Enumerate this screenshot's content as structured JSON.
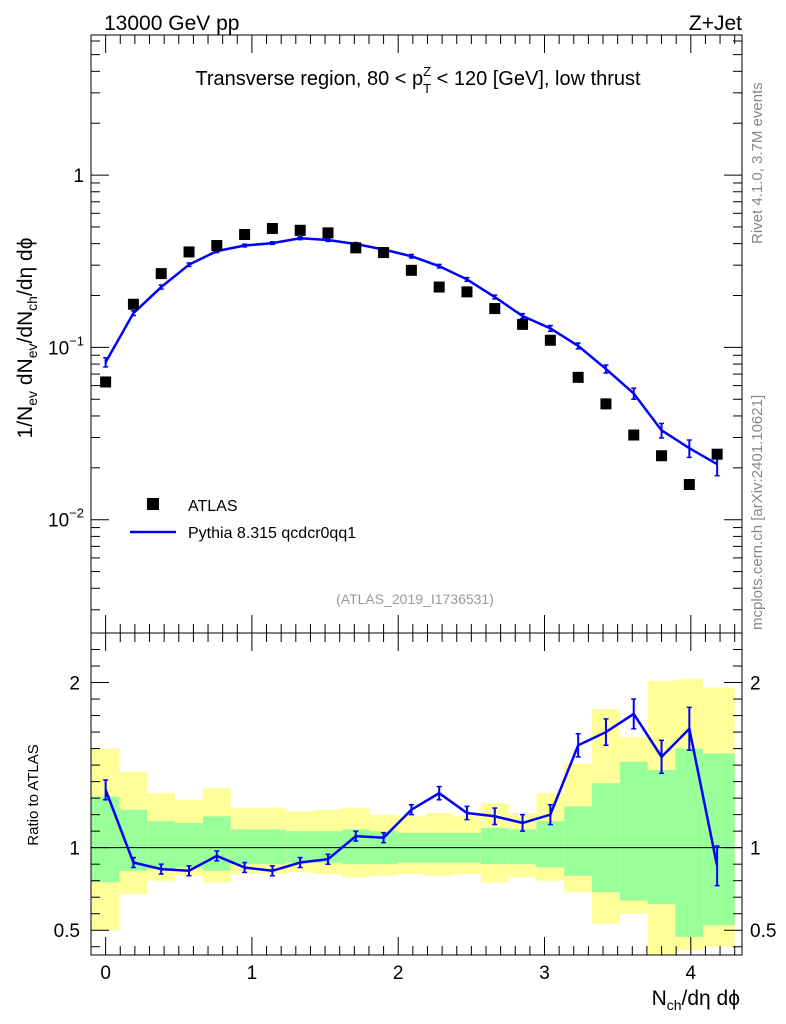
{
  "header": {
    "left": "13000 GeV pp",
    "right": "Z+Jet"
  },
  "side_labels": {
    "rivet": "Rivet 4.1.0,  3.7M events",
    "mcplots": "mcplots.cern.ch [arXiv:2401.10621]"
  },
  "chart_data": [
    {
      "type": "scatter",
      "panel": "main",
      "title": "Transverse region, 80 < pTZ < 120 [GeV], low thrust",
      "title_parts": {
        "before": "Transverse region, 80 < p",
        "sup": "Z",
        "sub": "T",
        "after": " < 120 [GeV], low thrust"
      },
      "ylabel": "1/Nev dNev/dNch/dη dϕ",
      "yscale": "log",
      "ylim": [
        0.0022,
        6.5
      ],
      "xlim": [
        -0.1,
        4.35
      ],
      "y_tick_labels": [
        {
          "value": 1,
          "label": "1"
        },
        {
          "value": 0.1,
          "label": "10",
          "exp": "−1"
        },
        {
          "value": 0.01,
          "label": "10",
          "exp": "−2"
        }
      ],
      "watermark": "(ATLAS_2019_I1736531)",
      "legend": {
        "position": "lower-left",
        "entries": [
          "ATLAS",
          "Pythia 8.315 qcdcr0qq1"
        ]
      },
      "series": [
        {
          "name": "ATLAS",
          "style": "markers",
          "color": "#000000",
          "x": [
            0.0,
            0.19,
            0.38,
            0.57,
            0.76,
            0.95,
            1.14,
            1.33,
            1.52,
            1.71,
            1.9,
            2.09,
            2.28,
            2.47,
            2.66,
            2.85,
            3.04,
            3.23,
            3.42,
            3.61,
            3.8,
            3.99,
            4.18
          ],
          "y": [
            0.063,
            0.178,
            0.268,
            0.358,
            0.39,
            0.452,
            0.49,
            0.478,
            0.462,
            0.378,
            0.355,
            0.28,
            0.224,
            0.21,
            0.168,
            0.136,
            0.11,
            0.067,
            0.047,
            0.031,
            0.0235,
            0.016,
            0.024
          ]
        },
        {
          "name": "Pythia 8.315 qcdcr0qq1",
          "style": "line",
          "color": "#0000ff",
          "x": [
            0.0,
            0.19,
            0.38,
            0.57,
            0.76,
            0.95,
            1.14,
            1.33,
            1.52,
            1.71,
            1.9,
            2.09,
            2.28,
            2.47,
            2.66,
            2.85,
            3.04,
            3.23,
            3.42,
            3.61,
            3.8,
            3.99,
            4.18
          ],
          "y": [
            0.082,
            0.158,
            0.224,
            0.302,
            0.362,
            0.39,
            0.403,
            0.43,
            0.42,
            0.398,
            0.37,
            0.338,
            0.296,
            0.248,
            0.196,
            0.152,
            0.129,
            0.102,
            0.075,
            0.054,
            0.033,
            0.026,
            0.021
          ],
          "yerr": [
            0.005,
            0.005,
            0.006,
            0.007,
            0.007,
            0.007,
            0.007,
            0.008,
            0.008,
            0.008,
            0.008,
            0.008,
            0.007,
            0.006,
            0.005,
            0.005,
            0.005,
            0.004,
            0.004,
            0.004,
            0.0032,
            0.003,
            0.003
          ]
        }
      ]
    },
    {
      "type": "line",
      "panel": "ratio",
      "ylabel": "Ratio to ATLAS",
      "xlabel": "Nch/dη dϕ",
      "ylim": [
        0.35,
        2.3
      ],
      "xlim": [
        -0.1,
        4.35
      ],
      "x_tick_labels": [
        "0",
        "1",
        "2",
        "3",
        "4"
      ],
      "y_tick_labels": [
        "0.5",
        "1",
        "2"
      ],
      "reference_line": 1.0,
      "bands": {
        "bin_edges": [
          -0.1,
          0.095,
          0.285,
          0.475,
          0.665,
          0.855,
          1.045,
          1.235,
          1.425,
          1.615,
          1.805,
          1.995,
          2.185,
          2.375,
          2.565,
          2.755,
          2.945,
          3.135,
          3.325,
          3.515,
          3.705,
          3.895,
          4.085,
          4.3
        ],
        "yellow_low": [
          0.5,
          0.72,
          0.8,
          0.83,
          0.79,
          0.84,
          0.84,
          0.85,
          0.84,
          0.82,
          0.83,
          0.84,
          0.83,
          0.84,
          0.79,
          0.82,
          0.8,
          0.73,
          0.54,
          0.6,
          0.35,
          0.38,
          0.4
        ],
        "yellow_high": [
          1.6,
          1.46,
          1.33,
          1.29,
          1.36,
          1.24,
          1.24,
          1.22,
          1.23,
          1.24,
          1.2,
          1.19,
          1.21,
          1.19,
          1.27,
          1.21,
          1.33,
          1.51,
          1.84,
          1.67,
          2.01,
          2.02,
          1.97
        ],
        "green_low": [
          0.79,
          0.86,
          0.87,
          0.88,
          0.86,
          0.9,
          0.9,
          0.91,
          0.91,
          0.9,
          0.9,
          0.91,
          0.91,
          0.91,
          0.9,
          0.9,
          0.88,
          0.83,
          0.73,
          0.68,
          0.66,
          0.46,
          0.53
        ],
        "green_high": [
          1.31,
          1.23,
          1.16,
          1.15,
          1.19,
          1.11,
          1.11,
          1.1,
          1.1,
          1.11,
          1.1,
          1.09,
          1.09,
          1.09,
          1.12,
          1.11,
          1.16,
          1.25,
          1.39,
          1.52,
          1.47,
          1.6,
          1.57
        ]
      },
      "series": [
        {
          "name": "Pythia 8.315 qcdcr0qq1 / ATLAS",
          "color": "#0000ff",
          "x": [
            0.0,
            0.19,
            0.38,
            0.57,
            0.76,
            0.95,
            1.14,
            1.33,
            1.52,
            1.71,
            1.9,
            2.09,
            2.28,
            2.47,
            2.66,
            2.85,
            3.04,
            3.23,
            3.42,
            3.61,
            3.8,
            3.99,
            4.18
          ],
          "y": [
            1.35,
            0.91,
            0.87,
            0.86,
            0.95,
            0.88,
            0.86,
            0.91,
            0.93,
            1.07,
            1.06,
            1.23,
            1.33,
            1.21,
            1.19,
            1.15,
            1.2,
            1.62,
            1.7,
            1.81,
            1.55,
            1.72,
            0.89
          ],
          "yerr": [
            0.06,
            0.03,
            0.03,
            0.03,
            0.03,
            0.03,
            0.03,
            0.03,
            0.03,
            0.03,
            0.03,
            0.03,
            0.04,
            0.04,
            0.05,
            0.05,
            0.06,
            0.07,
            0.08,
            0.09,
            0.1,
            0.13,
            0.12
          ]
        }
      ]
    }
  ]
}
